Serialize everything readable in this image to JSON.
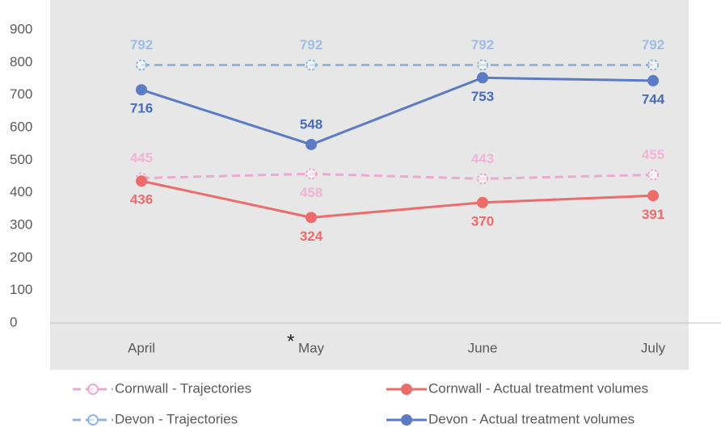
{
  "chart_data": {
    "type": "line",
    "categories": [
      "April",
      "May",
      "June",
      "July"
    ],
    "series": [
      {
        "name": "Cornwall - Trajectories",
        "color": "#eaa9cd",
        "dashed": true,
        "values": [
          445,
          458,
          443,
          455
        ]
      },
      {
        "name": "Cornwall - Actual treatment volumes",
        "color": "#ec6b6b",
        "dashed": false,
        "values": [
          436,
          324,
          370,
          391
        ]
      },
      {
        "name": "Devon - Trajectories",
        "color": "#8fb5dd",
        "dashed": true,
        "values": [
          792,
          792,
          792,
          792
        ]
      },
      {
        "name": "Devon - Actual treatment volumes",
        "color": "#5b7bc4",
        "dashed": false,
        "values": [
          716,
          548,
          753,
          744
        ]
      }
    ],
    "ylim": [
      0,
      900
    ],
    "yticks": [
      0,
      100,
      200,
      300,
      400,
      500,
      600,
      700,
      800,
      900
    ],
    "grid": false,
    "legend": "bottom",
    "annotations": [
      "*"
    ]
  }
}
